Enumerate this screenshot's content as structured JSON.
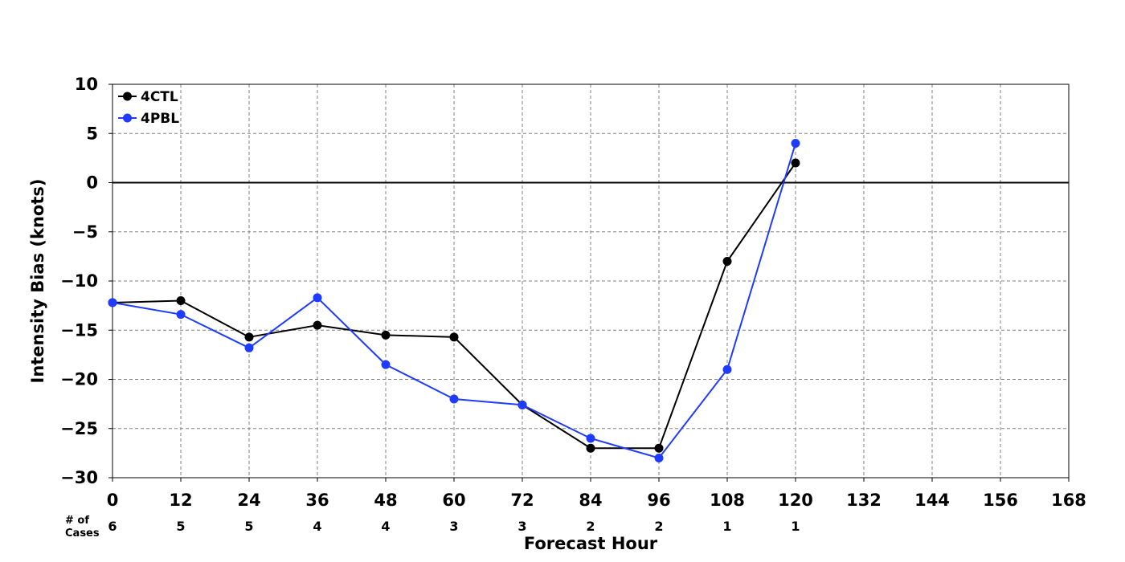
{
  "chart_data": {
    "type": "line",
    "xlabel": "Forecast Hour",
    "ylabel": "Intensity Bias (knots)",
    "xlim": [
      0,
      168
    ],
    "ylim": [
      -30,
      10
    ],
    "x_ticks": [
      0,
      12,
      24,
      36,
      48,
      60,
      72,
      84,
      96,
      108,
      120,
      132,
      144,
      156,
      168
    ],
    "y_ticks": [
      -30,
      -25,
      -20,
      -15,
      -10,
      -5,
      0,
      5,
      10
    ],
    "y_tick_labels": [
      "−30",
      "−25",
      "−20",
      "−15",
      "−10",
      "−5",
      "0",
      "5",
      "10"
    ],
    "grid": true,
    "zero_line": true,
    "legend_position": "top-left",
    "series": [
      {
        "name": "4CTL",
        "color": "#000000",
        "x": [
          0,
          12,
          24,
          36,
          48,
          60,
          72,
          84,
          96,
          108,
          120
        ],
        "y": [
          -12.2,
          -12.0,
          -15.7,
          -14.5,
          -15.5,
          -15.7,
          -22.6,
          -27.0,
          -27.0,
          -8.0,
          2.0
        ]
      },
      {
        "name": "4PBL",
        "color": "#1f3bff",
        "x": [
          0,
          12,
          24,
          36,
          48,
          60,
          72,
          84,
          96,
          108,
          120
        ],
        "y": [
          -12.2,
          -13.4,
          -16.8,
          -11.7,
          -18.5,
          -22.0,
          -22.6,
          -26.0,
          -28.0,
          -19.0,
          4.0
        ]
      }
    ],
    "cases": {
      "label_line1": "# of",
      "label_line2": "Cases",
      "x": [
        0,
        12,
        24,
        36,
        48,
        60,
        72,
        84,
        96,
        108,
        120
      ],
      "values": [
        "6",
        "5",
        "5",
        "4",
        "4",
        "3",
        "3",
        "2",
        "2",
        "1",
        "1"
      ]
    }
  }
}
